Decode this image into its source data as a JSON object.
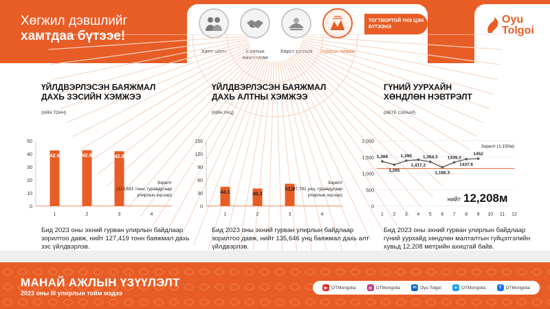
{
  "header": {
    "title_line1": "Хөгжил дэвшлийг",
    "title_line2": "хамтдаа бүтээе!",
    "pillars": [
      {
        "label": "Хамт олон",
        "icon": "people-icon"
      },
      {
        "label": "Хамтын ажиллагаа",
        "icon": "handshake-icon"
      },
      {
        "label": "Хөрст дэлхий",
        "icon": "nature-icon"
      },
      {
        "label": "Хүртэх өгөөж",
        "icon": "value-icon"
      }
    ],
    "active_tag": "ТОГТВОРТОЙ ҮНЭ ЦЭН БҮТЭЭНЭ",
    "logo_line1": "Oyu",
    "logo_line2": "Tolgoi"
  },
  "panels": [
    {
      "title_line1": "ҮЙЛДВЭРЛЭСЭН БАЯЖМАЛ",
      "title_line2": "ДАХЬ ЗЭСИЙН ХЭМЖЭЭ",
      "unit": "(МЯН.ТОНН)",
      "goal_line1": "Зорилт",
      "goal_line2": "(113,691 тонн, гуравдугаар",
      "goal_line3": "улирлын эцсээр)",
      "description": "Бид 2023 оны эхний гурван улирлын байдлаар зорилтоо давж, нийт 127,419 тонн баяжмал дахь зэс үйлдвэрлэв."
    },
    {
      "title_line1": "ҮЙЛДВЭРЛЭСЭН БАЯЖМАЛ",
      "title_line2": "ДАХЬ АЛТНЫ ХЭМЖЭЭ",
      "unit": "(МЯН.УНЦ)",
      "goal_line1": "Зорилт",
      "goal_line2": "(107,791 унц, гуравдугаар",
      "goal_line3": "улирлын эцсээр)",
      "description": "Бид 2023 оны эхний гурван улирлын байдлаар зорилтоо давж, нийт 135,646 унц баяжмал дахь алт үйлдвэрлэв."
    },
    {
      "title_line1": "ГҮНИЙ УУРХАЙН",
      "title_line2": "ХӨНДЛӨН НЭВТРЭЛТ",
      "unit": "(МЕТР, САРААР)",
      "goal_label": "Зорилт (1,150м)",
      "total_label": "нийт",
      "total_value": "12,208м",
      "description": "Бид 2023 оны эхний гурван улирлын байдлаар гүний уурхайд хөндлөн малталтын гүйцэтгэлийн хувьд 12,208 метрийн ахицтай байв."
    }
  ],
  "chart_data": [
    {
      "type": "bar",
      "categories": [
        "1",
        "2",
        "3",
        "4"
      ],
      "values": [
        42.6,
        42.8,
        42.0,
        null
      ],
      "labels": [
        "42.6",
        "42.8",
        "42.0"
      ],
      "ylim": [
        0,
        50
      ],
      "yticks": [
        0,
        10,
        20,
        30,
        40,
        50
      ],
      "goal": 113.691,
      "color": "#e85d25"
    },
    {
      "type": "bar",
      "categories": [
        "1",
        "2",
        "3",
        "4"
      ],
      "values": [
        44.1,
        40.3,
        51.2,
        null
      ],
      "labels": [
        "44.1",
        "40.3",
        "51.2"
      ],
      "ylim": [
        0,
        150
      ],
      "yticks": [
        0,
        30,
        60,
        90,
        120,
        150
      ],
      "goal": 107.791,
      "color": "#e85d25"
    },
    {
      "type": "line",
      "categories": [
        "1",
        "2",
        "3",
        "4",
        "5",
        "6",
        "7",
        "8",
        "9",
        "10",
        "11",
        "12"
      ],
      "values": [
        1368,
        1265,
        1390,
        1417.2,
        1354.3,
        1186.3,
        1339.3,
        1437.6,
        1452,
        null,
        null,
        null
      ],
      "labels": [
        "1,368",
        "1,265",
        "1,390",
        "1,417.2",
        "1,354.3",
        "1,186.3",
        "1339.3",
        "1437.6",
        "1452"
      ],
      "ylim": [
        0,
        2000
      ],
      "yticks": [
        0,
        500,
        1000,
        1500,
        2000
      ],
      "ytick_labels": [
        "0",
        "500",
        "1,000",
        "1,500",
        "2,000"
      ],
      "goal": 1150,
      "color": "#555555",
      "goal_color": "#e85d25"
    }
  ],
  "footer": {
    "title": "МАНАЙ АЖЛЫН ҮЗҮҮЛЭЛТ",
    "subtitle": "2023 оны III улирлын тойм мэдээ",
    "socials": [
      {
        "name": "youtube-icon",
        "label": "OTMongolia",
        "color": "#e52d27"
      },
      {
        "name": "instagram-icon",
        "label": "OTMongolia",
        "color": "#c13584"
      },
      {
        "name": "linkedin-icon",
        "label": "Oyu Tolgoi",
        "color": "#0a66c2"
      },
      {
        "name": "twitter-icon",
        "label": "OTMongolia",
        "color": "#1da1f2"
      },
      {
        "name": "facebook-icon",
        "label": "OTMongolia",
        "color": "#1877f2"
      }
    ]
  },
  "colors": {
    "accent": "#e85d25",
    "gray": "#555555"
  }
}
